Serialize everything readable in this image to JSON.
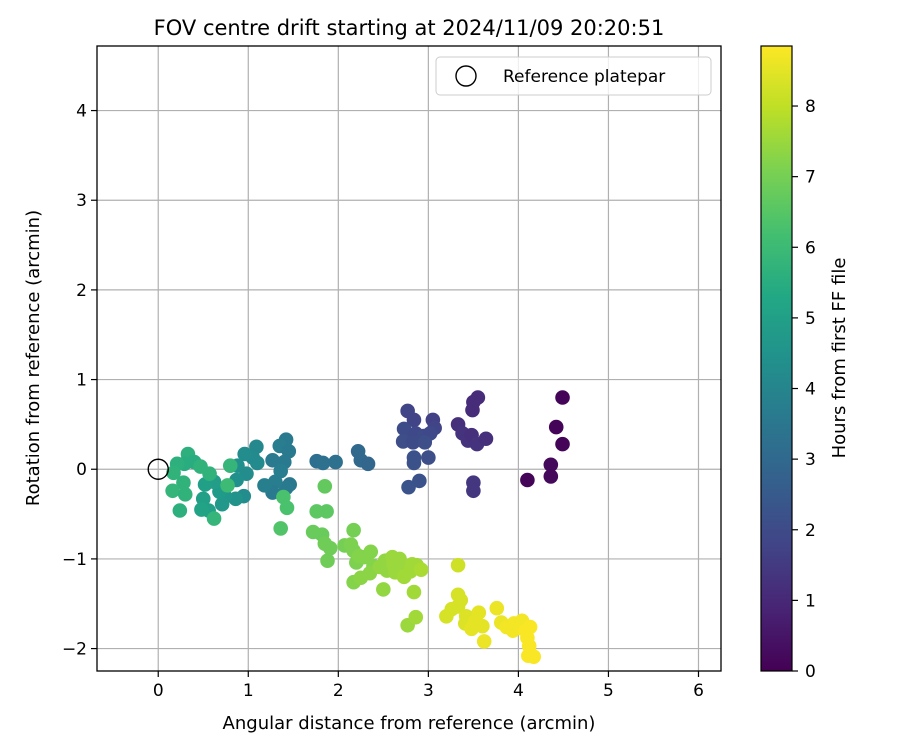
{
  "chart_data": {
    "type": "scatter",
    "title": "FOV centre drift starting at 2024/11/09 20:20:51",
    "xlabel": "Angular distance from reference (arcmin)",
    "ylabel": "Rotation from reference (arcmin)",
    "xlim": [
      -0.68,
      6.25
    ],
    "ylim": [
      -2.25,
      4.72
    ],
    "xticks": [
      0,
      1,
      2,
      3,
      4,
      5,
      6
    ],
    "yticks": [
      -2,
      -1,
      0,
      1,
      2,
      3,
      4
    ],
    "grid": true,
    "legend": {
      "position": "top-right",
      "entries": [
        "Reference platepar"
      ]
    },
    "reference_point": {
      "x": 0,
      "y": 0
    },
    "colorbar": {
      "label": "Hours from first FF file",
      "colormap": "viridis",
      "range": [
        0,
        8.85
      ],
      "ticks": [
        0,
        1,
        2,
        3,
        4,
        5,
        6,
        7,
        8
      ]
    },
    "points": [
      {
        "x": 4.49,
        "y": 0.8,
        "t": 0.1
      },
      {
        "x": 4.42,
        "y": 0.47,
        "t": 0.1
      },
      {
        "x": 4.49,
        "y": 0.28,
        "t": 0.1
      },
      {
        "x": 4.36,
        "y": 0.05,
        "t": 0.2
      },
      {
        "x": 4.36,
        "y": -0.08,
        "t": 0.2
      },
      {
        "x": 4.1,
        "y": -0.12,
        "t": 0.1
      },
      {
        "x": 3.55,
        "y": 0.8,
        "t": 1.1
      },
      {
        "x": 3.5,
        "y": 0.75,
        "t": 1.1
      },
      {
        "x": 3.49,
        "y": 0.66,
        "t": 1.1
      },
      {
        "x": 3.33,
        "y": 0.5,
        "t": 1.2
      },
      {
        "x": 3.38,
        "y": 0.4,
        "t": 1.3
      },
      {
        "x": 3.44,
        "y": 0.32,
        "t": 1.3
      },
      {
        "x": 3.48,
        "y": 0.38,
        "t": 1.2
      },
      {
        "x": 3.54,
        "y": 0.28,
        "t": 1.3
      },
      {
        "x": 3.64,
        "y": 0.34,
        "t": 1.2
      },
      {
        "x": 3.5,
        "y": -0.15,
        "t": 1.4
      },
      {
        "x": 3.5,
        "y": -0.24,
        "t": 1.4
      },
      {
        "x": 2.77,
        "y": 0.65,
        "t": 1.8
      },
      {
        "x": 2.84,
        "y": 0.55,
        "t": 1.8
      },
      {
        "x": 3.05,
        "y": 0.55,
        "t": 1.7
      },
      {
        "x": 3.07,
        "y": 0.46,
        "t": 1.8
      },
      {
        "x": 2.73,
        "y": 0.45,
        "t": 2.0
      },
      {
        "x": 2.78,
        "y": 0.37,
        "t": 2.0
      },
      {
        "x": 2.86,
        "y": 0.4,
        "t": 1.9
      },
      {
        "x": 2.95,
        "y": 0.37,
        "t": 2.0
      },
      {
        "x": 3.02,
        "y": 0.4,
        "t": 1.9
      },
      {
        "x": 2.72,
        "y": 0.31,
        "t": 2.1
      },
      {
        "x": 2.83,
        "y": 0.3,
        "t": 2.0
      },
      {
        "x": 2.96,
        "y": 0.3,
        "t": 2.1
      },
      {
        "x": 2.84,
        "y": 0.13,
        "t": 2.2
      },
      {
        "x": 2.84,
        "y": 0.07,
        "t": 2.2
      },
      {
        "x": 3.0,
        "y": 0.13,
        "t": 2.1
      },
      {
        "x": 2.9,
        "y": -0.13,
        "t": 2.2
      },
      {
        "x": 2.78,
        "y": -0.2,
        "t": 2.3
      },
      {
        "x": 2.22,
        "y": 0.2,
        "t": 3.0
      },
      {
        "x": 2.25,
        "y": 0.1,
        "t": 3.0
      },
      {
        "x": 2.33,
        "y": 0.06,
        "t": 2.9
      },
      {
        "x": 1.76,
        "y": 0.09,
        "t": 3.2
      },
      {
        "x": 1.83,
        "y": 0.07,
        "t": 3.3
      },
      {
        "x": 1.97,
        "y": 0.08,
        "t": 3.3
      },
      {
        "x": 1.42,
        "y": 0.33,
        "t": 3.6
      },
      {
        "x": 1.35,
        "y": 0.26,
        "t": 3.7
      },
      {
        "x": 1.45,
        "y": 0.2,
        "t": 3.6
      },
      {
        "x": 1.27,
        "y": 0.1,
        "t": 3.6
      },
      {
        "x": 1.4,
        "y": 0.08,
        "t": 3.6
      },
      {
        "x": 1.36,
        "y": -0.02,
        "t": 3.7
      },
      {
        "x": 1.46,
        "y": -0.17,
        "t": 3.5
      },
      {
        "x": 1.42,
        "y": -0.21,
        "t": 3.6
      },
      {
        "x": 1.3,
        "y": -0.14,
        "t": 3.7
      },
      {
        "x": 1.27,
        "y": -0.26,
        "t": 3.6
      },
      {
        "x": 1.18,
        "y": -0.18,
        "t": 3.8
      },
      {
        "x": 1.09,
        "y": 0.25,
        "t": 4.1
      },
      {
        "x": 1.05,
        "y": 0.13,
        "t": 4.2
      },
      {
        "x": 0.96,
        "y": 0.17,
        "t": 4.3
      },
      {
        "x": 0.88,
        "y": 0.04,
        "t": 4.4
      },
      {
        "x": 1.1,
        "y": 0.07,
        "t": 4.2
      },
      {
        "x": 0.98,
        "y": -0.05,
        "t": 4.3
      },
      {
        "x": 0.87,
        "y": -0.12,
        "t": 4.4
      },
      {
        "x": 0.95,
        "y": -0.3,
        "t": 4.3
      },
      {
        "x": 0.86,
        "y": -0.33,
        "t": 4.5
      },
      {
        "x": 0.74,
        "y": -0.3,
        "t": 4.6
      },
      {
        "x": 0.71,
        "y": -0.39,
        "t": 4.7
      },
      {
        "x": 0.68,
        "y": -0.25,
        "t": 4.8
      },
      {
        "x": 0.62,
        "y": -0.14,
        "t": 4.9
      },
      {
        "x": 0.52,
        "y": -0.17,
        "t": 5.0
      },
      {
        "x": 0.5,
        "y": -0.33,
        "t": 5.0
      },
      {
        "x": 0.56,
        "y": -0.46,
        "t": 5.0
      },
      {
        "x": 0.48,
        "y": -0.45,
        "t": 5.1
      },
      {
        "x": 0.33,
        "y": 0.17,
        "t": 5.6
      },
      {
        "x": 0.29,
        "y": 0.06,
        "t": 5.5
      },
      {
        "x": 0.21,
        "y": 0.06,
        "t": 5.6
      },
      {
        "x": 0.4,
        "y": 0.08,
        "t": 5.5
      },
      {
        "x": 0.17,
        "y": -0.04,
        "t": 5.7
      },
      {
        "x": 0.28,
        "y": -0.15,
        "t": 5.7
      },
      {
        "x": 0.16,
        "y": -0.24,
        "t": 5.8
      },
      {
        "x": 0.3,
        "y": -0.28,
        "t": 5.7
      },
      {
        "x": 0.24,
        "y": -0.46,
        "t": 5.6
      },
      {
        "x": 0.47,
        "y": 0.03,
        "t": 5.7
      },
      {
        "x": 0.57,
        "y": -0.05,
        "t": 5.7
      },
      {
        "x": 0.8,
        "y": 0.04,
        "t": 5.8
      },
      {
        "x": 0.77,
        "y": -0.18,
        "t": 6.0
      },
      {
        "x": 0.62,
        "y": -0.55,
        "t": 5.8
      },
      {
        "x": 1.39,
        "y": -0.31,
        "t": 6.3
      },
      {
        "x": 1.43,
        "y": -0.43,
        "t": 6.3
      },
      {
        "x": 1.36,
        "y": -0.66,
        "t": 6.4
      },
      {
        "x": 1.85,
        "y": -0.19,
        "t": 6.7
      },
      {
        "x": 1.87,
        "y": -0.47,
        "t": 6.6
      },
      {
        "x": 1.76,
        "y": -0.47,
        "t": 6.6
      },
      {
        "x": 1.72,
        "y": -0.7,
        "t": 6.8
      },
      {
        "x": 1.82,
        "y": -0.73,
        "t": 6.8
      },
      {
        "x": 1.85,
        "y": -0.83,
        "t": 6.9
      },
      {
        "x": 1.91,
        "y": -0.88,
        "t": 6.9
      },
      {
        "x": 1.88,
        "y": -1.02,
        "t": 6.9
      },
      {
        "x": 2.07,
        "y": -0.85,
        "t": 7.0
      },
      {
        "x": 2.14,
        "y": -0.84,
        "t": 7.1
      },
      {
        "x": 2.17,
        "y": -0.68,
        "t": 7.0
      },
      {
        "x": 2.17,
        "y": -0.91,
        "t": 7.1
      },
      {
        "x": 2.2,
        "y": -1.04,
        "t": 7.1
      },
      {
        "x": 2.23,
        "y": -0.97,
        "t": 7.2
      },
      {
        "x": 2.29,
        "y": -0.98,
        "t": 7.2
      },
      {
        "x": 2.36,
        "y": -0.92,
        "t": 7.2
      },
      {
        "x": 2.39,
        "y": -1.08,
        "t": 7.2
      },
      {
        "x": 2.17,
        "y": -1.26,
        "t": 7.2
      },
      {
        "x": 2.25,
        "y": -1.21,
        "t": 7.3
      },
      {
        "x": 2.35,
        "y": -1.16,
        "t": 7.3
      },
      {
        "x": 2.46,
        "y": -1.09,
        "t": 7.4
      },
      {
        "x": 2.52,
        "y": -1.02,
        "t": 7.4
      },
      {
        "x": 2.54,
        "y": -1.13,
        "t": 7.4
      },
      {
        "x": 2.6,
        "y": -0.98,
        "t": 7.5
      },
      {
        "x": 2.61,
        "y": -1.06,
        "t": 7.5
      },
      {
        "x": 2.63,
        "y": -1.15,
        "t": 7.5
      },
      {
        "x": 2.68,
        "y": -1.0,
        "t": 7.5
      },
      {
        "x": 2.7,
        "y": -1.07,
        "t": 7.5
      },
      {
        "x": 2.73,
        "y": -1.2,
        "t": 7.6
      },
      {
        "x": 2.8,
        "y": -1.14,
        "t": 7.6
      },
      {
        "x": 2.82,
        "y": -1.06,
        "t": 7.6
      },
      {
        "x": 2.87,
        "y": -1.07,
        "t": 7.6
      },
      {
        "x": 2.92,
        "y": -1.12,
        "t": 7.7
      },
      {
        "x": 2.84,
        "y": -1.37,
        "t": 7.6
      },
      {
        "x": 2.5,
        "y": -1.34,
        "t": 7.4
      },
      {
        "x": 2.77,
        "y": -1.74,
        "t": 7.5
      },
      {
        "x": 2.86,
        "y": -1.65,
        "t": 7.6
      },
      {
        "x": 3.33,
        "y": -1.07,
        "t": 8.2
      },
      {
        "x": 3.33,
        "y": -1.4,
        "t": 8.3
      },
      {
        "x": 3.36,
        "y": -1.46,
        "t": 8.3
      },
      {
        "x": 3.33,
        "y": -1.53,
        "t": 8.3
      },
      {
        "x": 3.26,
        "y": -1.56,
        "t": 8.3
      },
      {
        "x": 3.2,
        "y": -1.64,
        "t": 8.3
      },
      {
        "x": 3.42,
        "y": -1.64,
        "t": 8.4
      },
      {
        "x": 3.41,
        "y": -1.72,
        "t": 8.4
      },
      {
        "x": 3.48,
        "y": -1.66,
        "t": 8.4
      },
      {
        "x": 3.48,
        "y": -1.78,
        "t": 8.5
      },
      {
        "x": 3.52,
        "y": -1.7,
        "t": 8.5
      },
      {
        "x": 3.56,
        "y": -1.6,
        "t": 8.5
      },
      {
        "x": 3.6,
        "y": -1.75,
        "t": 8.5
      },
      {
        "x": 3.62,
        "y": -1.92,
        "t": 8.6
      },
      {
        "x": 3.76,
        "y": -1.55,
        "t": 8.6
      },
      {
        "x": 3.81,
        "y": -1.71,
        "t": 8.6
      },
      {
        "x": 3.87,
        "y": -1.76,
        "t": 8.7
      },
      {
        "x": 3.94,
        "y": -1.8,
        "t": 8.7
      },
      {
        "x": 3.95,
        "y": -1.72,
        "t": 8.7
      },
      {
        "x": 4.02,
        "y": -1.77,
        "t": 8.7
      },
      {
        "x": 4.04,
        "y": -1.69,
        "t": 8.7
      },
      {
        "x": 4.08,
        "y": -1.8,
        "t": 8.8
      },
      {
        "x": 4.13,
        "y": -1.76,
        "t": 8.8
      },
      {
        "x": 4.1,
        "y": -1.88,
        "t": 8.8
      },
      {
        "x": 4.12,
        "y": -1.97,
        "t": 8.8
      },
      {
        "x": 4.13,
        "y": -2.06,
        "t": 8.8
      },
      {
        "x": 4.17,
        "y": -2.09,
        "t": 8.8
      },
      {
        "x": 4.11,
        "y": -2.08,
        "t": 8.8
      }
    ]
  }
}
